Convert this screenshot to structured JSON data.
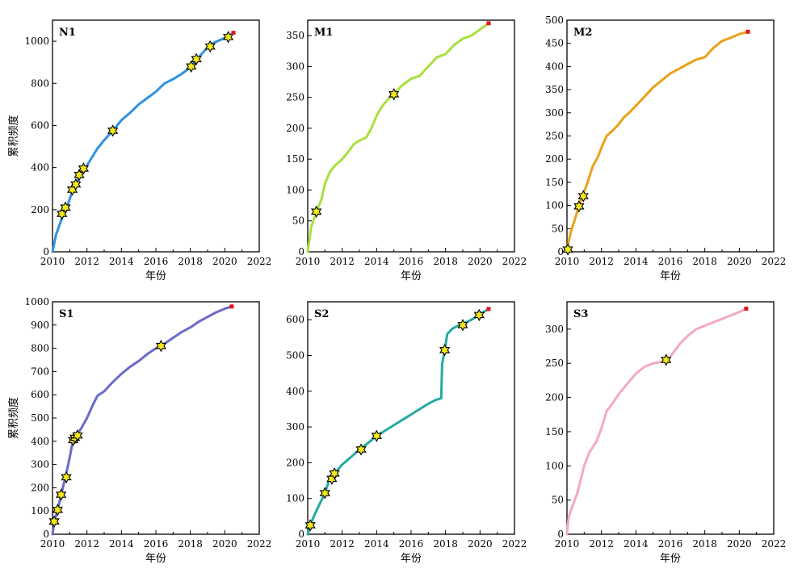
{
  "chart_data": [
    {
      "type": "line",
      "panel_label": "N1",
      "color": "#2f92e0",
      "xlabel": "年份",
      "ylabel": "累积频度",
      "xlim": [
        2010,
        2022
      ],
      "ylim": [
        0,
        1100
      ],
      "xticks": [
        2010,
        2012,
        2014,
        2016,
        2018,
        2020,
        2022
      ],
      "yticks": [
        0,
        200,
        400,
        600,
        800,
        1000
      ],
      "series": [
        {
          "x": [
            2010.0,
            2010.2,
            2010.5,
            2010.7,
            2010.85,
            2011.0,
            2011.2,
            2011.4,
            2011.6,
            2011.8,
            2012.0,
            2012.3,
            2012.6,
            2013.0,
            2013.5,
            2014.0,
            2014.5,
            2015.0,
            2015.5,
            2016.0,
            2016.5,
            2017.0,
            2017.5,
            2018.0,
            2018.3,
            2018.6,
            2019.0,
            2019.3,
            2019.7,
            2020.0,
            2020.3,
            2020.5
          ],
          "y": [
            0,
            80,
            150,
            190,
            215,
            250,
            300,
            330,
            360,
            385,
            410,
            450,
            490,
            530,
            575,
            625,
            660,
            700,
            730,
            760,
            800,
            820,
            845,
            875,
            905,
            935,
            970,
            990,
            1005,
            1015,
            1030,
            1040
          ]
        }
      ],
      "markers": {
        "x": [
          2010.55,
          2010.75,
          2011.15,
          2011.35,
          2011.55,
          2011.8,
          2013.5,
          2018.05,
          2018.35,
          2019.15,
          2020.2
        ],
        "y": [
          180,
          210,
          295,
          320,
          365,
          395,
          575,
          880,
          915,
          975,
          1020
        ]
      },
      "endpoint": {
        "x": 2020.5,
        "y": 1040
      }
    },
    {
      "type": "line",
      "panel_label": "M1",
      "color": "#a8e040",
      "xlabel": "年份",
      "ylabel": "",
      "xlim": [
        2010,
        2022
      ],
      "ylim": [
        0,
        375
      ],
      "xticks": [
        2010,
        2012,
        2014,
        2016,
        2018,
        2020,
        2022
      ],
      "yticks": [
        0,
        50,
        100,
        150,
        200,
        250,
        300,
        350
      ],
      "series": [
        {
          "x": [
            2010.0,
            2010.2,
            2010.5,
            2010.8,
            2011.0,
            2011.3,
            2011.6,
            2012.0,
            2012.3,
            2012.7,
            2013.0,
            2013.4,
            2013.7,
            2014.0,
            2014.3,
            2014.6,
            2015.0,
            2015.5,
            2016.0,
            2016.5,
            2017.0,
            2017.5,
            2018.0,
            2018.5,
            2019.0,
            2019.5,
            2020.0,
            2020.5
          ],
          "y": [
            0,
            40,
            65,
            85,
            110,
            130,
            140,
            150,
            160,
            175,
            180,
            185,
            200,
            220,
            235,
            245,
            255,
            270,
            280,
            285,
            300,
            315,
            320,
            335,
            345,
            350,
            360,
            370
          ]
        }
      ],
      "markers": {
        "x": [
          2010.5,
          2015.0
        ],
        "y": [
          65,
          255
        ]
      },
      "endpoint": {
        "x": 2020.5,
        "y": 370
      }
    },
    {
      "type": "line",
      "panel_label": "M2",
      "color": "#eaa21a",
      "xlabel": "年份",
      "ylabel": "",
      "xlim": [
        2010,
        2022
      ],
      "ylim": [
        0,
        500
      ],
      "xticks": [
        2010,
        2012,
        2014,
        2016,
        2018,
        2020,
        2022
      ],
      "yticks": [
        0,
        50,
        100,
        150,
        200,
        250,
        300,
        350,
        400,
        450,
        500
      ],
      "series": [
        {
          "x": [
            2010.0,
            2010.2,
            2010.5,
            2010.7,
            2010.9,
            2011.2,
            2011.5,
            2011.8,
            2012.0,
            2012.3,
            2012.6,
            2013.0,
            2013.3,
            2013.6,
            2014.0,
            2014.5,
            2015.0,
            2015.5,
            2016.0,
            2016.5,
            2017.0,
            2017.5,
            2018.0,
            2018.5,
            2019.0,
            2019.5,
            2020.0,
            2020.5
          ],
          "y": [
            5,
            40,
            75,
            100,
            120,
            150,
            185,
            205,
            225,
            250,
            260,
            275,
            290,
            300,
            315,
            335,
            355,
            370,
            385,
            395,
            405,
            415,
            420,
            440,
            455,
            462,
            470,
            475
          ]
        }
      ],
      "markers": {
        "x": [
          2010.05,
          2010.7,
          2010.95
        ],
        "y": [
          5,
          98,
          120
        ]
      },
      "endpoint": {
        "x": 2020.5,
        "y": 475
      }
    },
    {
      "type": "line",
      "panel_label": "S1",
      "color": "#6b6ac8",
      "xlabel": "年份",
      "ylabel": "累积频度",
      "xlim": [
        2010,
        2022
      ],
      "ylim": [
        0,
        1000
      ],
      "xticks": [
        2010,
        2012,
        2014,
        2016,
        2018,
        2020,
        2022
      ],
      "yticks": [
        0,
        100,
        200,
        300,
        400,
        500,
        600,
        700,
        800,
        900,
        1000
      ],
      "series": [
        {
          "x": [
            2010.0,
            2010.1,
            2010.3,
            2010.5,
            2010.75,
            2011.0,
            2011.2,
            2011.4,
            2011.7,
            2012.0,
            2012.3,
            2012.6,
            2013.0,
            2013.5,
            2014.0,
            2014.5,
            2015.0,
            2015.5,
            2016.0,
            2016.3,
            2016.7,
            2017.0,
            2017.5,
            2018.0,
            2018.5,
            2019.0,
            2019.5,
            2020.0,
            2020.4
          ],
          "y": [
            0,
            50,
            105,
            170,
            245,
            330,
            410,
            425,
            460,
            500,
            550,
            595,
            615,
            655,
            690,
            720,
            745,
            775,
            800,
            810,
            830,
            845,
            870,
            890,
            915,
            935,
            955,
            970,
            980
          ]
        }
      ],
      "markers": {
        "x": [
          2010.1,
          2010.3,
          2010.5,
          2010.8,
          2011.2,
          2011.3,
          2011.45,
          2016.3
        ],
        "y": [
          55,
          105,
          170,
          245,
          405,
          415,
          425,
          810
        ]
      },
      "endpoint": {
        "x": 2020.4,
        "y": 980
      }
    },
    {
      "type": "line",
      "panel_label": "S2",
      "color": "#26aaa0",
      "xlabel": "年份",
      "ylabel": "",
      "xlim": [
        2010,
        2022
      ],
      "ylim": [
        0,
        650
      ],
      "xticks": [
        2010,
        2012,
        2014,
        2016,
        2018,
        2020,
        2022
      ],
      "yticks": [
        0,
        100,
        200,
        300,
        400,
        500,
        600
      ],
      "series": [
        {
          "x": [
            2010.0,
            2010.15,
            2010.4,
            2010.7,
            2011.0,
            2011.2,
            2011.4,
            2011.6,
            2012.0,
            2012.5,
            2013.0,
            2013.5,
            2014.0,
            2014.5,
            2015.0,
            2015.5,
            2016.0,
            2016.5,
            2017.0,
            2017.4,
            2017.75,
            2017.8,
            2017.95,
            2018.1,
            2018.4,
            2018.8,
            2019.0,
            2019.5,
            2020.0,
            2020.5
          ],
          "y": [
            0,
            25,
            55,
            85,
            115,
            145,
            160,
            172,
            195,
            215,
            237,
            255,
            275,
            290,
            305,
            320,
            335,
            350,
            365,
            375,
            380,
            475,
            515,
            560,
            575,
            585,
            588,
            600,
            615,
            630
          ]
        }
      ],
      "markers": {
        "x": [
          2010.15,
          2011.0,
          2011.4,
          2011.55,
          2013.1,
          2014.0,
          2017.95,
          2019.0,
          2019.95
        ],
        "y": [
          25,
          115,
          155,
          170,
          237,
          275,
          515,
          585,
          613
        ]
      },
      "endpoint": {
        "x": 2020.5,
        "y": 630
      }
    },
    {
      "type": "line",
      "panel_label": "S3",
      "color": "#f4a8c4",
      "xlabel": "年份",
      "ylabel": "",
      "xlim": [
        2010,
        2022
      ],
      "ylim": [
        0,
        340
      ],
      "xticks": [
        2010,
        2012,
        2014,
        2016,
        2018,
        2020,
        2022
      ],
      "yticks": [
        0,
        50,
        100,
        150,
        200,
        250,
        300
      ],
      "series": [
        {
          "x": [
            2010.0,
            2010.1,
            2010.3,
            2010.6,
            2011.0,
            2011.3,
            2011.7,
            2012.0,
            2012.3,
            2012.6,
            2013.0,
            2013.5,
            2014.0,
            2014.5,
            2015.0,
            2015.5,
            2015.8,
            2016.0,
            2016.3,
            2016.6,
            2017.0,
            2017.5,
            2018.0,
            2018.5,
            2019.0,
            2019.5,
            2020.0,
            2020.4
          ],
          "y": [
            0,
            25,
            40,
            60,
            100,
            120,
            135,
            155,
            180,
            190,
            205,
            220,
            235,
            245,
            250,
            252,
            255,
            260,
            270,
            280,
            290,
            300,
            305,
            310,
            315,
            320,
            325,
            330
          ]
        }
      ],
      "markers": {
        "x": [
          2015.75
        ],
        "y": [
          255
        ]
      },
      "endpoint": {
        "x": 2020.4,
        "y": 330
      }
    }
  ]
}
